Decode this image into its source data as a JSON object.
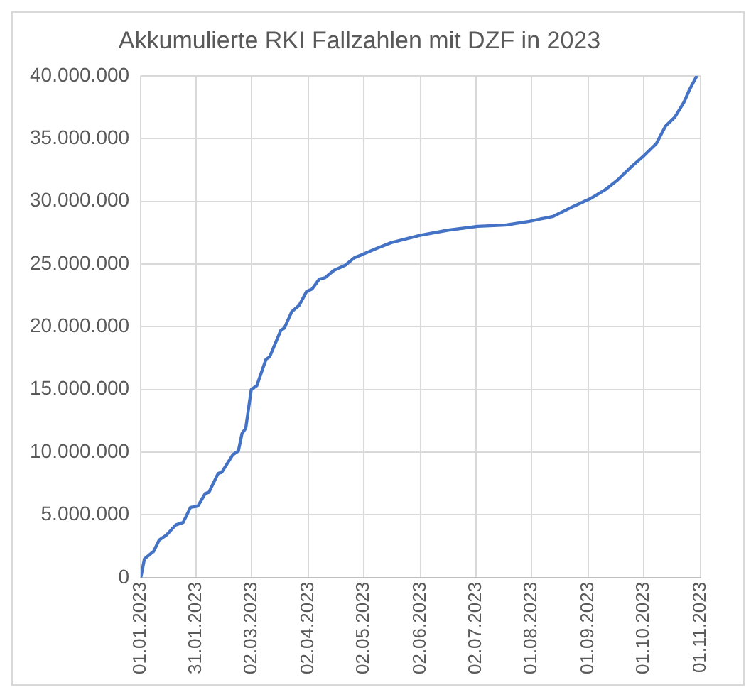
{
  "chart_data": {
    "type": "line",
    "title": "Akkumulierte RKI Fallzahlen mit DZF in 2023",
    "x": [
      "2023-01-01",
      "2023-01-03",
      "2023-01-08",
      "2023-01-11",
      "2023-01-15",
      "2023-01-20",
      "2023-01-24",
      "2023-01-28",
      "2023-02-01",
      "2023-02-05",
      "2023-02-07",
      "2023-02-12",
      "2023-02-14",
      "2023-02-20",
      "2023-02-23",
      "2023-02-25",
      "2023-02-27",
      "2023-03-02",
      "2023-03-05",
      "2023-03-10",
      "2023-03-12",
      "2023-03-18",
      "2023-03-20",
      "2023-03-24",
      "2023-03-28",
      "2023-04-01",
      "2023-04-04",
      "2023-04-08",
      "2023-04-11",
      "2023-04-16",
      "2023-04-22",
      "2023-04-27",
      "2023-05-02",
      "2023-05-10",
      "2023-05-17",
      "2023-06-02",
      "2023-06-17",
      "2023-07-03",
      "2023-07-18",
      "2023-07-31",
      "2023-08-13",
      "2023-08-24",
      "2023-09-02",
      "2023-09-10",
      "2023-09-17",
      "2023-09-24",
      "2023-10-01",
      "2023-10-08",
      "2023-10-13",
      "2023-10-18",
      "2023-10-23",
      "2023-10-26",
      "2023-10-30"
    ],
    "series": [
      {
        "color": "#4472c4",
        "values": [
          0,
          1500000,
          2100000,
          3000000,
          3400000,
          4200000,
          4400000,
          5600000,
          5700000,
          6700000,
          6800000,
          8300000,
          8400000,
          9800000,
          10100000,
          11500000,
          11900000,
          15000000,
          15300000,
          17400000,
          17600000,
          19700000,
          19900000,
          21200000,
          21700000,
          22800000,
          23000000,
          23800000,
          23900000,
          24500000,
          24900000,
          25500000,
          25800000,
          26300000,
          26700000,
          27300000,
          27700000,
          28000000,
          28100000,
          28400000,
          28800000,
          29600000,
          30200000,
          30900000,
          31700000,
          32700000,
          33600000,
          34600000,
          36000000,
          36700000,
          37900000,
          38900000,
          40000000
        ]
      }
    ],
    "xlim": [
      "2023-01-01",
      "2023-11-01"
    ],
    "xticks": [
      {
        "value": "2023-01-01",
        "label": "01.01.2023"
      },
      {
        "value": "2023-01-31",
        "label": "31.01.2023"
      },
      {
        "value": "2023-03-02",
        "label": "02.03.2023"
      },
      {
        "value": "2023-04-02",
        "label": "02.04.2023"
      },
      {
        "value": "2023-05-02",
        "label": "02.05.2023"
      },
      {
        "value": "2023-06-02",
        "label": "02.06.2023"
      },
      {
        "value": "2023-07-02",
        "label": "02.07.2023"
      },
      {
        "value": "2023-08-01",
        "label": "01.08.2023"
      },
      {
        "value": "2023-09-01",
        "label": "01.09.2023"
      },
      {
        "value": "2023-10-01",
        "label": "01.10.2023"
      },
      {
        "value": "2023-11-01",
        "label": "01.11.2023"
      }
    ],
    "ylim": [
      0,
      40000000
    ],
    "yticks": [
      0,
      {
        "value": 5000000,
        "label": "5.000.000"
      },
      {
        "value": 10000000,
        "label": "10.000.000"
      },
      {
        "value": 15000000,
        "label": "15.000.000"
      },
      {
        "value": 20000000,
        "label": "20.000.000"
      },
      {
        "value": 25000000,
        "label": "25.000.000"
      },
      {
        "value": 30000000,
        "label": "30.000.000"
      },
      {
        "value": 35000000,
        "label": "35.000.000"
      },
      {
        "value": 40000000,
        "label": "40.000.000"
      }
    ],
    "grid": true,
    "legend": false,
    "marker": "none",
    "line_style": "solid"
  }
}
